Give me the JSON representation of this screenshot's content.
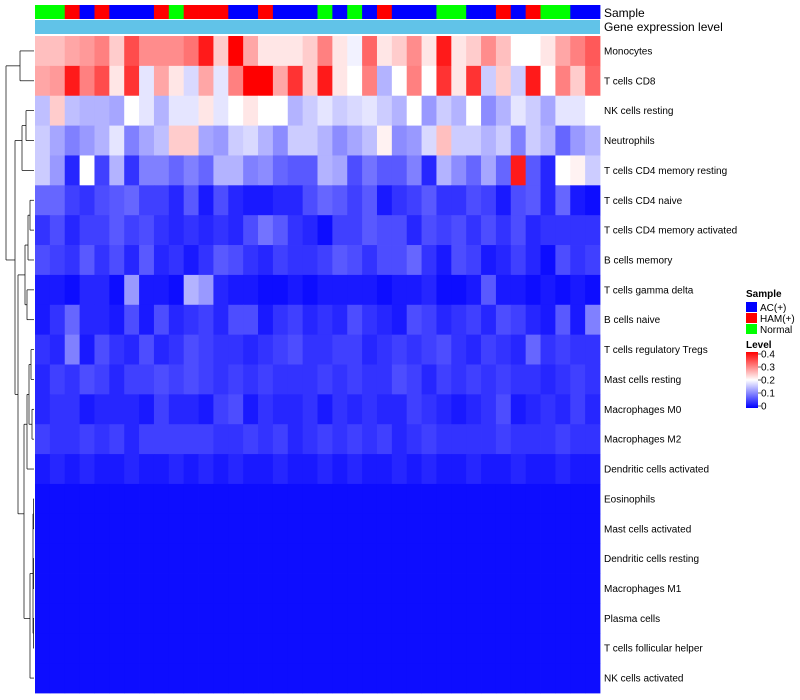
{
  "chart_data": {
    "type": "heatmap",
    "title": "",
    "annotations": {
      "sample_label": "Sample",
      "gene_expression_label": "Gene expression level",
      "sample_colors_per_column": [
        "Normal",
        "Normal",
        "HAM(+)",
        "AC(+)",
        "HAM(+)",
        "AC(+)",
        "AC(+)",
        "AC(+)",
        "HAM(+)",
        "Normal",
        "HAM(+)",
        "HAM(+)",
        "HAM(+)",
        "AC(+)",
        "AC(+)",
        "HAM(+)",
        "AC(+)",
        "AC(+)",
        "AC(+)",
        "Normal",
        "AC(+)",
        "Normal",
        "AC(+)",
        "HAM(+)",
        "AC(+)",
        "AC(+)",
        "AC(+)",
        "Normal",
        "Normal",
        "AC(+)",
        "AC(+)",
        "HAM(+)",
        "AC(+)",
        "HAM(+)",
        "Normal",
        "Normal",
        "AC(+)",
        "AC(+)"
      ]
    },
    "rows": [
      "Monocytes",
      "T cells CD8",
      "NK cells resting",
      "Neutrophils",
      "T cells CD4 memory resting",
      "T cells CD4 naive",
      "T cells CD4 memory activated",
      "B cells memory",
      "T cells gamma delta",
      "B cells naive",
      "T cells regulatory  Tregs",
      "Mast cells resting",
      "Macrophages M0",
      "Macrophages M2",
      "Dendritic cells activated",
      "Eosinophils",
      "Mast cells activated",
      "Dendritic cells resting",
      "Macrophages M1",
      "Plasma cells",
      "T cells follicular helper",
      "NK cells activated"
    ],
    "n_columns": 38,
    "values": [
      [
        0.25,
        0.25,
        0.27,
        0.28,
        0.3,
        0.24,
        0.34,
        0.29,
        0.29,
        0.29,
        0.31,
        0.38,
        0.24,
        0.4,
        0.27,
        0.22,
        0.22,
        0.22,
        0.24,
        0.3,
        0.22,
        0.19,
        0.32,
        0.22,
        0.24,
        0.29,
        0.22,
        0.38,
        0.22,
        0.24,
        0.29,
        0.25,
        0.2,
        0.2,
        0.22,
        0.27,
        0.3,
        0.33
      ],
      [
        0.27,
        0.28,
        0.38,
        0.3,
        0.34,
        0.22,
        0.36,
        0.18,
        0.27,
        0.22,
        0.17,
        0.27,
        0.18,
        0.3,
        0.4,
        0.4,
        0.27,
        0.36,
        0.24,
        0.38,
        0.22,
        0.2,
        0.3,
        0.14,
        0.2,
        0.3,
        0.2,
        0.36,
        0.22,
        0.36,
        0.16,
        0.24,
        0.16,
        0.38,
        0.2,
        0.3,
        0.24,
        0.32
      ],
      [
        0.15,
        0.24,
        0.15,
        0.14,
        0.14,
        0.13,
        0.2,
        0.18,
        0.14,
        0.18,
        0.18,
        0.22,
        0.18,
        0.2,
        0.22,
        0.2,
        0.2,
        0.14,
        0.16,
        0.18,
        0.16,
        0.17,
        0.18,
        0.16,
        0.14,
        0.2,
        0.12,
        0.16,
        0.14,
        0.2,
        0.11,
        0.14,
        0.18,
        0.16,
        0.13,
        0.18,
        0.18,
        0.2
      ],
      [
        0.16,
        0.13,
        0.1,
        0.12,
        0.14,
        0.18,
        0.1,
        0.13,
        0.15,
        0.24,
        0.24,
        0.13,
        0.12,
        0.16,
        0.17,
        0.14,
        0.11,
        0.16,
        0.16,
        0.14,
        0.11,
        0.13,
        0.15,
        0.21,
        0.11,
        0.12,
        0.17,
        0.25,
        0.16,
        0.16,
        0.14,
        0.16,
        0.1,
        0.16,
        0.14,
        0.08,
        0.12,
        0.14
      ],
      [
        0.16,
        0.12,
        0.03,
        0.2,
        0.05,
        0.14,
        0.04,
        0.1,
        0.1,
        0.08,
        0.1,
        0.08,
        0.14,
        0.14,
        0.1,
        0.11,
        0.08,
        0.07,
        0.07,
        0.14,
        0.13,
        0.06,
        0.09,
        0.07,
        0.07,
        0.1,
        0.03,
        0.14,
        0.11,
        0.08,
        0.13,
        0.08,
        0.38,
        0.07,
        0.03,
        0.2,
        0.21,
        0.16
      ],
      [
        0.08,
        0.08,
        0.05,
        0.04,
        0.06,
        0.07,
        0.08,
        0.05,
        0.05,
        0.03,
        0.07,
        0.02,
        0.06,
        0.03,
        0.02,
        0.02,
        0.03,
        0.03,
        0.06,
        0.08,
        0.07,
        0.05,
        0.07,
        0.02,
        0.04,
        0.05,
        0.07,
        0.04,
        0.04,
        0.06,
        0.05,
        0.02,
        0.06,
        0.07,
        0.03,
        0.08,
        0.02,
        0.01
      ],
      [
        0.04,
        0.06,
        0.03,
        0.05,
        0.05,
        0.07,
        0.05,
        0.06,
        0.04,
        0.03,
        0.04,
        0.03,
        0.04,
        0.03,
        0.06,
        0.09,
        0.07,
        0.04,
        0.03,
        0.01,
        0.05,
        0.05,
        0.07,
        0.06,
        0.06,
        0.03,
        0.06,
        0.05,
        0.06,
        0.04,
        0.06,
        0.04,
        0.06,
        0.03,
        0.04,
        0.04,
        0.04,
        0.04
      ],
      [
        0.06,
        0.05,
        0.04,
        0.07,
        0.04,
        0.06,
        0.03,
        0.07,
        0.03,
        0.04,
        0.02,
        0.04,
        0.07,
        0.06,
        0.04,
        0.03,
        0.05,
        0.04,
        0.04,
        0.05,
        0.07,
        0.06,
        0.04,
        0.06,
        0.06,
        0.08,
        0.04,
        0.02,
        0.06,
        0.05,
        0.02,
        0.03,
        0.05,
        0.03,
        0.01,
        0.06,
        0.04,
        0.05
      ],
      [
        0.02,
        0.02,
        0.01,
        0.03,
        0.03,
        0.01,
        0.12,
        0.02,
        0.02,
        0.01,
        0.14,
        0.12,
        0.03,
        0.02,
        0.02,
        0.01,
        0.01,
        0.02,
        0.01,
        0.02,
        0.02,
        0.02,
        0.02,
        0.01,
        0.02,
        0.02,
        0.03,
        0.01,
        0.01,
        0.02,
        0.07,
        0.02,
        0.02,
        0.01,
        0.02,
        0.01,
        0.02,
        0.01
      ],
      [
        0.02,
        0.04,
        0.08,
        0.03,
        0.03,
        0.02,
        0.06,
        0.02,
        0.06,
        0.03,
        0.04,
        0.05,
        0.03,
        0.06,
        0.06,
        0.02,
        0.04,
        0.05,
        0.03,
        0.04,
        0.03,
        0.06,
        0.04,
        0.03,
        0.02,
        0.06,
        0.05,
        0.03,
        0.04,
        0.05,
        0.03,
        0.06,
        0.05,
        0.03,
        0.02,
        0.07,
        0.02,
        0.1
      ],
      [
        0.04,
        0.03,
        0.1,
        0.02,
        0.06,
        0.04,
        0.03,
        0.06,
        0.03,
        0.04,
        0.06,
        0.05,
        0.04,
        0.04,
        0.03,
        0.04,
        0.05,
        0.06,
        0.04,
        0.04,
        0.05,
        0.05,
        0.03,
        0.04,
        0.05,
        0.04,
        0.05,
        0.06,
        0.04,
        0.03,
        0.05,
        0.04,
        0.03,
        0.08,
        0.04,
        0.05,
        0.04,
        0.04
      ],
      [
        0.03,
        0.05,
        0.04,
        0.06,
        0.05,
        0.03,
        0.05,
        0.05,
        0.06,
        0.05,
        0.06,
        0.05,
        0.04,
        0.05,
        0.04,
        0.05,
        0.04,
        0.04,
        0.04,
        0.05,
        0.04,
        0.05,
        0.04,
        0.04,
        0.06,
        0.05,
        0.03,
        0.05,
        0.04,
        0.05,
        0.04,
        0.05,
        0.04,
        0.04,
        0.03,
        0.04,
        0.05,
        0.04
      ],
      [
        0.03,
        0.04,
        0.04,
        0.02,
        0.03,
        0.03,
        0.03,
        0.02,
        0.05,
        0.03,
        0.03,
        0.02,
        0.05,
        0.06,
        0.02,
        0.04,
        0.03,
        0.03,
        0.04,
        0.02,
        0.04,
        0.03,
        0.04,
        0.03,
        0.03,
        0.05,
        0.04,
        0.03,
        0.02,
        0.03,
        0.04,
        0.06,
        0.02,
        0.03,
        0.04,
        0.03,
        0.05,
        0.03
      ],
      [
        0.05,
        0.04,
        0.04,
        0.05,
        0.04,
        0.05,
        0.03,
        0.05,
        0.05,
        0.05,
        0.05,
        0.05,
        0.04,
        0.04,
        0.05,
        0.04,
        0.05,
        0.03,
        0.04,
        0.05,
        0.04,
        0.05,
        0.04,
        0.05,
        0.03,
        0.04,
        0.05,
        0.04,
        0.04,
        0.04,
        0.04,
        0.05,
        0.04,
        0.04,
        0.04,
        0.05,
        0.04,
        0.04
      ],
      [
        0.02,
        0.03,
        0.02,
        0.03,
        0.02,
        0.02,
        0.03,
        0.02,
        0.02,
        0.03,
        0.02,
        0.03,
        0.02,
        0.03,
        0.02,
        0.02,
        0.03,
        0.02,
        0.02,
        0.03,
        0.02,
        0.03,
        0.02,
        0.02,
        0.03,
        0.02,
        0.03,
        0.02,
        0.02,
        0.03,
        0.02,
        0.02,
        0.03,
        0.02,
        0.02,
        0.03,
        0.02,
        0.02
      ],
      [
        0.01,
        0.01,
        0.01,
        0.01,
        0.01,
        0.01,
        0.01,
        0.01,
        0.01,
        0.01,
        0.01,
        0.01,
        0.01,
        0.01,
        0.01,
        0.01,
        0.01,
        0.01,
        0.01,
        0.01,
        0.01,
        0.01,
        0.01,
        0.01,
        0.01,
        0.01,
        0.01,
        0.01,
        0.01,
        0.01,
        0.01,
        0.01,
        0.01,
        0.01,
        0.01,
        0.01,
        0.01,
        0.01
      ],
      [
        0.01,
        0.01,
        0.01,
        0.01,
        0.01,
        0.01,
        0.01,
        0.01,
        0.01,
        0.01,
        0.01,
        0.01,
        0.01,
        0.01,
        0.01,
        0.01,
        0.01,
        0.01,
        0.01,
        0.01,
        0.01,
        0.01,
        0.01,
        0.01,
        0.01,
        0.01,
        0.01,
        0.01,
        0.01,
        0.01,
        0.01,
        0.01,
        0.01,
        0.01,
        0.01,
        0.01,
        0.01,
        0.01
      ],
      [
        0.01,
        0.01,
        0.01,
        0.01,
        0.01,
        0.01,
        0.01,
        0.01,
        0.01,
        0.01,
        0.01,
        0.01,
        0.01,
        0.01,
        0.01,
        0.01,
        0.01,
        0.01,
        0.01,
        0.01,
        0.01,
        0.01,
        0.01,
        0.01,
        0.01,
        0.01,
        0.01,
        0.01,
        0.01,
        0.01,
        0.01,
        0.01,
        0.01,
        0.01,
        0.01,
        0.01,
        0.01,
        0.01
      ],
      [
        0.01,
        0.01,
        0.01,
        0.01,
        0.01,
        0.01,
        0.01,
        0.01,
        0.01,
        0.01,
        0.01,
        0.01,
        0.01,
        0.01,
        0.01,
        0.01,
        0.01,
        0.01,
        0.01,
        0.01,
        0.01,
        0.01,
        0.01,
        0.01,
        0.01,
        0.01,
        0.01,
        0.01,
        0.01,
        0.01,
        0.01,
        0.01,
        0.01,
        0.01,
        0.01,
        0.01,
        0.01,
        0.01
      ],
      [
        0.01,
        0.01,
        0.01,
        0.01,
        0.01,
        0.01,
        0.01,
        0.01,
        0.01,
        0.01,
        0.01,
        0.01,
        0.01,
        0.01,
        0.01,
        0.01,
        0.01,
        0.01,
        0.01,
        0.01,
        0.01,
        0.01,
        0.01,
        0.01,
        0.01,
        0.01,
        0.01,
        0.01,
        0.01,
        0.01,
        0.01,
        0.01,
        0.01,
        0.01,
        0.01,
        0.01,
        0.01,
        0.01
      ],
      [
        0.01,
        0.01,
        0.01,
        0.01,
        0.01,
        0.01,
        0.01,
        0.01,
        0.01,
        0.01,
        0.01,
        0.01,
        0.01,
        0.01,
        0.01,
        0.01,
        0.01,
        0.01,
        0.01,
        0.01,
        0.01,
        0.01,
        0.01,
        0.01,
        0.01,
        0.01,
        0.01,
        0.01,
        0.01,
        0.01,
        0.01,
        0.01,
        0.01,
        0.01,
        0.01,
        0.01,
        0.01,
        0.01
      ],
      [
        0.01,
        0.01,
        0.01,
        0.01,
        0.01,
        0.01,
        0.01,
        0.01,
        0.01,
        0.01,
        0.01,
        0.01,
        0.01,
        0.01,
        0.01,
        0.01,
        0.01,
        0.01,
        0.01,
        0.01,
        0.01,
        0.01,
        0.01,
        0.01,
        0.01,
        0.01,
        0.01,
        0.01,
        0.01,
        0.01,
        0.01,
        0.01,
        0.01,
        0.01,
        0.01,
        0.01,
        0.01,
        0.01
      ]
    ],
    "color_scale": {
      "low": "#0000ff",
      "mid": "#ffffff",
      "high": "#ff0000",
      "min": 0,
      "mid_value": 0.2,
      "max": 0.4
    },
    "legend": {
      "sample_title": "Sample",
      "sample_entries": [
        {
          "label": "AC(+)",
          "color": "#0000ff"
        },
        {
          "label": "HAM(+)",
          "color": "#ff0000"
        },
        {
          "label": "Normal",
          "color": "#00ff00"
        }
      ],
      "level_title": "Level",
      "level_ticks": [
        "0.4",
        "0.3",
        "0.2",
        "0.1",
        "0"
      ],
      "placement": "right"
    },
    "gene_expression_color": "#61c3e8",
    "dendrogram": "left"
  }
}
